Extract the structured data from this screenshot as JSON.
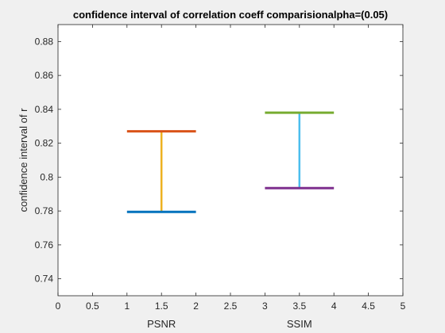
{
  "chart_data": {
    "type": "errorbar",
    "title": "confidence interval of correlation coeff comparisionalpha=(0.05)",
    "ylabel": "confidence interval of r",
    "xlim": [
      0,
      5
    ],
    "ylim": [
      0.73,
      0.89
    ],
    "xticks": [
      "0",
      "0.5",
      "1",
      "1.5",
      "2",
      "2.5",
      "3",
      "3.5",
      "4",
      "4.5",
      "5"
    ],
    "yticks": [
      "0.74",
      "0.76",
      "0.78",
      "0.8",
      "0.82",
      "0.84",
      "0.86",
      "0.88"
    ],
    "group_labels": [
      {
        "text": "PSNR",
        "x": 1.5
      },
      {
        "text": "SSIM",
        "x": 3.5
      }
    ],
    "intervals": [
      {
        "name": "PSNR",
        "x_center": 1.5,
        "x_range": [
          1,
          2
        ],
        "lower": 0.7795,
        "upper": 0.827,
        "lower_color": "#0072BD",
        "upper_color": "#D95319",
        "stem_color": "#EDB120"
      },
      {
        "name": "SSIM",
        "x_center": 3.5,
        "x_range": [
          3,
          4
        ],
        "lower": 0.7935,
        "upper": 0.838,
        "lower_color": "#7E2F8E",
        "upper_color": "#77AC30",
        "stem_color": "#4DBEEE"
      }
    ]
  }
}
